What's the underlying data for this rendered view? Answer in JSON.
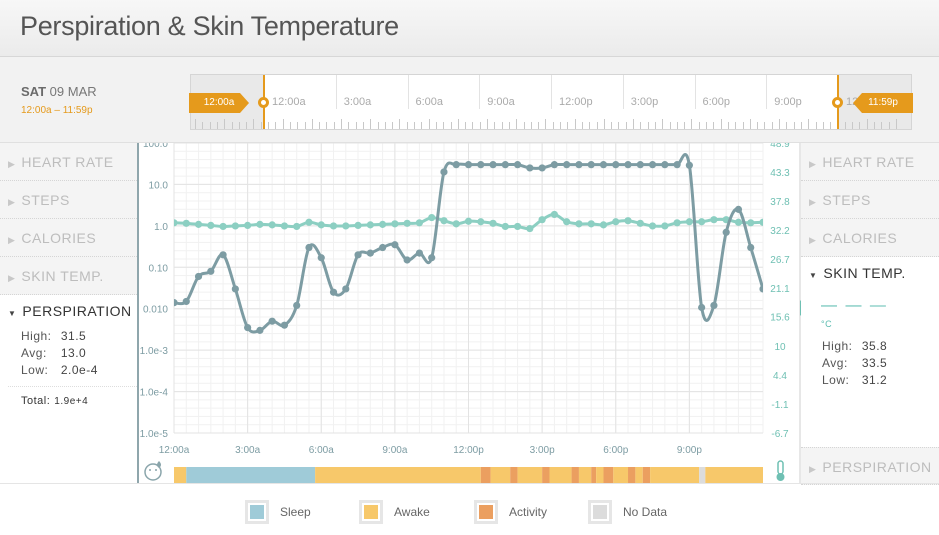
{
  "title": "Perspiration & Skin Temperature",
  "date": {
    "day": "SAT",
    "date": "09 MAR",
    "range": "12:00a – 11:59p"
  },
  "timeline": {
    "start_flag": "12:00a",
    "end_flag": "11:59p",
    "labels": [
      "12:00a",
      "3:00a",
      "6:00a",
      "9:00a",
      "12:00p",
      "3:00p",
      "6:00p",
      "9:00p",
      "12:00a"
    ]
  },
  "sidebar_left": {
    "items": [
      {
        "label": "HEART RATE"
      },
      {
        "label": "STEPS"
      },
      {
        "label": "CALORIES"
      },
      {
        "label": "SKIN TEMP."
      }
    ],
    "active": {
      "label": "PERSPIRATION",
      "high_label": "High:",
      "high": "31.5",
      "avg_label": "Avg:",
      "avg": "13.0",
      "low_label": "Low:",
      "low": "2.0e-4",
      "total_label": "Total:",
      "total": "1.9e+4"
    }
  },
  "sidebar_right": {
    "items": [
      {
        "label": "HEART RATE"
      },
      {
        "label": "STEPS"
      },
      {
        "label": "CALORIES"
      }
    ],
    "active": {
      "label": "SKIN TEMP.",
      "dashes": "— — —",
      "unit": "°C",
      "high_label": "High:",
      "high": "35.8",
      "avg_label": "Avg:",
      "avg": "33.5",
      "low_label": "Low:",
      "low": "31.2"
    },
    "bottom_item": {
      "label": "PERSPIRATION"
    }
  },
  "legend": [
    {
      "label": "Sleep",
      "color": "#9fcbd8"
    },
    {
      "label": "Awake",
      "color": "#f7c86a"
    },
    {
      "label": "Activity",
      "color": "#eb9f60"
    },
    {
      "label": "No Data",
      "color": "#dcdcdc"
    }
  ],
  "colors": {
    "accent": "#e59a1c",
    "perspiration": "#7d9ca3",
    "skin_temp": "#8ccfc2"
  },
  "chart_data": {
    "type": "line",
    "x_hours_ticks": [
      "12:00a",
      "3:00a",
      "6:00a",
      "9:00a",
      "12:00p",
      "3:00p",
      "6:00p",
      "9:00p"
    ],
    "x_tick_hours": [
      0,
      3,
      6,
      9,
      12,
      15,
      18,
      21
    ],
    "x_range_hours": [
      0,
      24
    ],
    "left_axis": {
      "label": "",
      "scale": "log",
      "ticks": [
        "1.0e-5",
        "1.0e-4",
        "1.0e-3",
        "0.010",
        "0.10",
        "1.0",
        "10.0",
        "100.0"
      ],
      "tick_values": [
        1e-05,
        0.0001,
        0.001,
        0.01,
        0.1,
        1,
        10,
        100
      ],
      "range": [
        1e-05,
        100
      ]
    },
    "right_axis": {
      "label": "",
      "ticks": [
        "-6.7",
        "-1.1",
        "4.4",
        "10",
        "15.6",
        "21.1",
        "26.7",
        "32.2",
        "37.8",
        "43.3",
        "48.9"
      ],
      "tick_values": [
        -6.7,
        -1.1,
        4.4,
        10,
        15.6,
        21.1,
        26.7,
        32.2,
        37.8,
        43.3,
        48.9
      ],
      "range": [
        -6.7,
        48.9
      ]
    },
    "series": [
      {
        "axis": "left",
        "hours": [
          0,
          0.5,
          1,
          1.5,
          2,
          2.5,
          3,
          3.5,
          4,
          4.5,
          5,
          5.5,
          6,
          6.5,
          7,
          7.5,
          8,
          8.5,
          9,
          9.5,
          10,
          10.5,
          11,
          11.5,
          12,
          12.5,
          13,
          13.5,
          14,
          14.5,
          15,
          15.5,
          16,
          16.5,
          17,
          17.5,
          18,
          18.5,
          19,
          19.5,
          20,
          20.5,
          21,
          21.5,
          22,
          22.5,
          23,
          23.5,
          24
        ],
        "values": [
          0.014,
          0.015,
          0.06,
          0.08,
          0.2,
          0.03,
          0.0035,
          0.003,
          0.005,
          0.004,
          0.012,
          0.3,
          0.17,
          0.025,
          0.03,
          0.2,
          0.22,
          0.3,
          0.35,
          0.15,
          0.22,
          0.17,
          20,
          30,
          30,
          30,
          30,
          30,
          30,
          25,
          25,
          30,
          30,
          30,
          30,
          30,
          30,
          30,
          30,
          30,
          30,
          30,
          29,
          0.0107,
          0.012,
          0.7,
          2.5,
          0.3,
          0.03
        ]
      },
      {
        "axis": "right",
        "hours": [
          0,
          0.5,
          1,
          1.5,
          2,
          2.5,
          3,
          3.5,
          4,
          4.5,
          5,
          5.5,
          6,
          6.5,
          7,
          7.5,
          8,
          8.5,
          9,
          9.5,
          10,
          10.5,
          11,
          11.5,
          12,
          12.5,
          13,
          13.5,
          14,
          14.5,
          15,
          15.5,
          16,
          16.5,
          17,
          17.5,
          18,
          18.5,
          19,
          19.5,
          20,
          20.5,
          21,
          21.5,
          22,
          22.5,
          23,
          23.5,
          24
        ],
        "values": [
          33.6,
          33.5,
          33.3,
          33.1,
          32.9,
          33.0,
          33.1,
          33.3,
          33.2,
          33.0,
          32.9,
          33.7,
          33.2,
          33.0,
          33.0,
          33.1,
          33.2,
          33.3,
          33.4,
          33.5,
          33.6,
          34.6,
          34.0,
          33.4,
          33.9,
          33.8,
          33.5,
          32.9,
          32.9,
          32.5,
          34.2,
          35.2,
          33.8,
          33.4,
          33.4,
          33.2,
          33.8,
          34.0,
          33.5,
          33.0,
          33.0,
          33.6,
          33.8,
          33.8,
          34.2,
          34.2,
          33.7,
          33.6,
          33.7
        ]
      }
    ],
    "activity_bar": {
      "states": [
        "Awake",
        "Sleep",
        "Awake",
        "Activity",
        "Awake",
        "Activity",
        "Awake",
        "Activity",
        "Awake",
        "Activity",
        "Awake",
        "Activity",
        "Awake",
        "Activity",
        "Awake",
        "Activity",
        "Awake",
        "Activity",
        "Awake",
        "No Data",
        "Awake"
      ],
      "start_hours": [
        0,
        0.5,
        5.75,
        12.5,
        12.9,
        13.7,
        14.0,
        15.0,
        15.3,
        16.2,
        16.5,
        17.0,
        17.2,
        17.5,
        17.9,
        18.5,
        18.8,
        19.1,
        19.4,
        21.4,
        21.65
      ],
      "end_hours": [
        0.5,
        5.75,
        12.5,
        12.9,
        13.7,
        14.0,
        15.0,
        15.3,
        16.2,
        16.5,
        17.0,
        17.2,
        17.5,
        17.9,
        18.5,
        18.8,
        19.1,
        19.4,
        21.4,
        21.65,
        24
      ]
    }
  }
}
